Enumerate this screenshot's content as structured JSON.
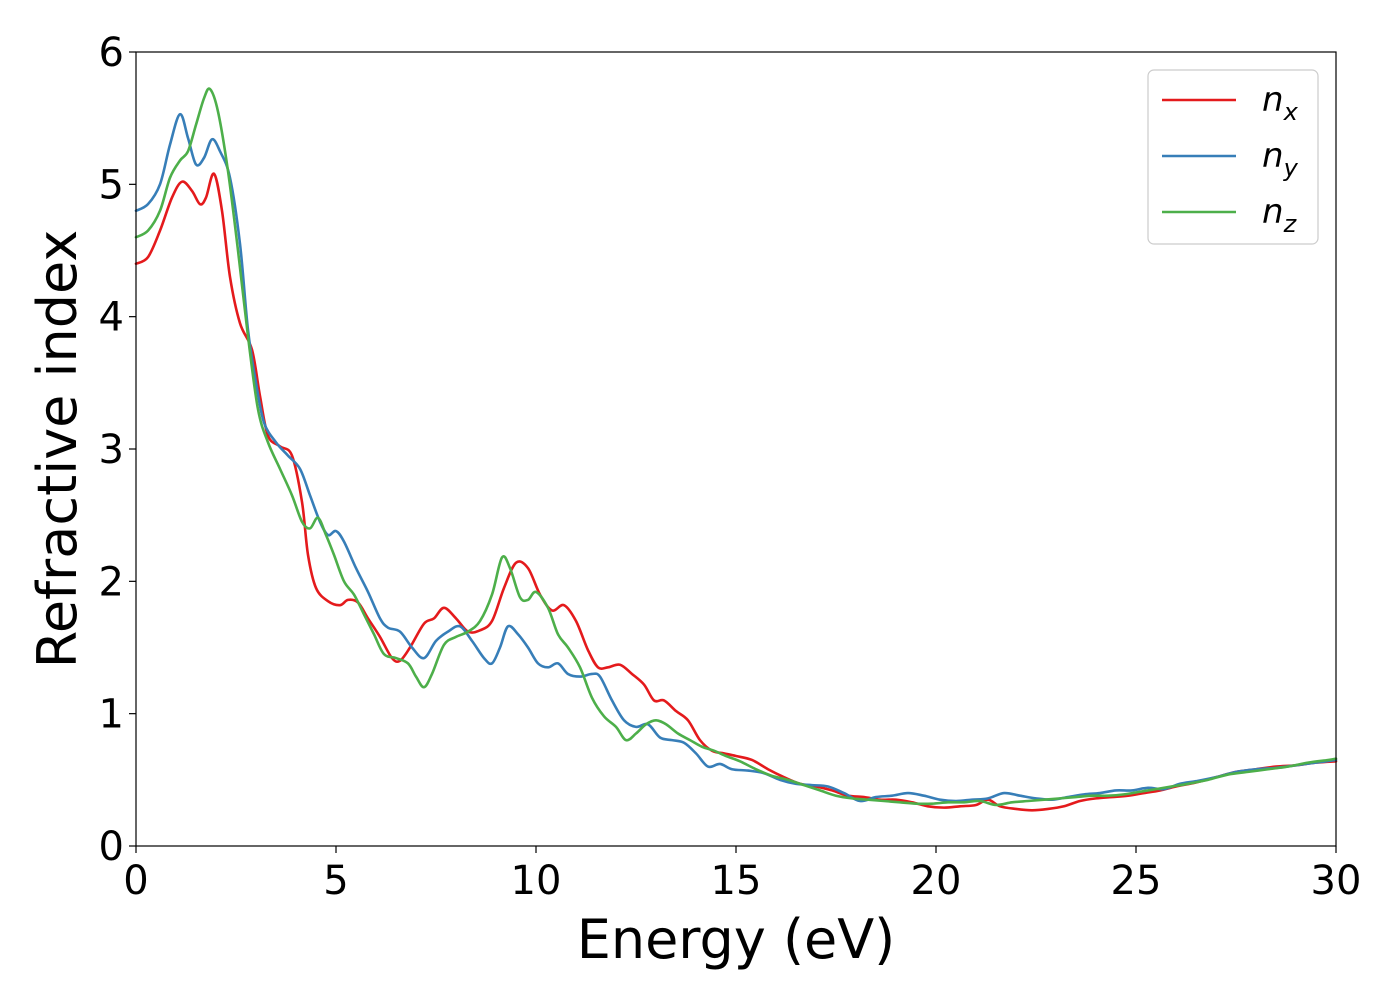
{
  "chart_data": {
    "type": "line",
    "xlabel": "Energy (eV)",
    "ylabel": "Refractive index",
    "xlim": [
      0,
      30
    ],
    "ylim": [
      0,
      6
    ],
    "x_ticks": [
      "0",
      "5",
      "10",
      "15",
      "20",
      "25",
      "30"
    ],
    "y_ticks": [
      "0",
      "1",
      "2",
      "3",
      "4",
      "5",
      "6"
    ],
    "grid": false,
    "legend_position": "top-right",
    "series": [
      {
        "name": "n",
        "subscript": "x",
        "color": "#e41a1c",
        "points": [
          [
            0,
            4.4
          ],
          [
            0.3,
            4.45
          ],
          [
            0.6,
            4.65
          ],
          [
            0.9,
            4.9
          ],
          [
            1.15,
            5.02
          ],
          [
            1.4,
            4.95
          ],
          [
            1.6,
            4.85
          ],
          [
            1.75,
            4.9
          ],
          [
            1.95,
            5.08
          ],
          [
            2.15,
            4.8
          ],
          [
            2.35,
            4.3
          ],
          [
            2.6,
            3.95
          ],
          [
            2.9,
            3.75
          ],
          [
            3.1,
            3.4
          ],
          [
            3.3,
            3.1
          ],
          [
            3.6,
            3.02
          ],
          [
            3.9,
            2.95
          ],
          [
            4.15,
            2.6
          ],
          [
            4.3,
            2.2
          ],
          [
            4.5,
            1.95
          ],
          [
            4.8,
            1.85
          ],
          [
            5.1,
            1.82
          ],
          [
            5.3,
            1.86
          ],
          [
            5.55,
            1.84
          ],
          [
            5.8,
            1.72
          ],
          [
            6.1,
            1.58
          ],
          [
            6.4,
            1.42
          ],
          [
            6.6,
            1.4
          ],
          [
            6.85,
            1.5
          ],
          [
            7.2,
            1.68
          ],
          [
            7.45,
            1.72
          ],
          [
            7.7,
            1.8
          ],
          [
            8.0,
            1.72
          ],
          [
            8.3,
            1.62
          ],
          [
            8.6,
            1.63
          ],
          [
            8.9,
            1.7
          ],
          [
            9.2,
            1.95
          ],
          [
            9.5,
            2.14
          ],
          [
            9.8,
            2.1
          ],
          [
            10.1,
            1.9
          ],
          [
            10.4,
            1.78
          ],
          [
            10.7,
            1.82
          ],
          [
            11.0,
            1.7
          ],
          [
            11.3,
            1.48
          ],
          [
            11.55,
            1.35
          ],
          [
            11.8,
            1.35
          ],
          [
            12.1,
            1.37
          ],
          [
            12.4,
            1.3
          ],
          [
            12.7,
            1.22
          ],
          [
            12.95,
            1.1
          ],
          [
            13.2,
            1.1
          ],
          [
            13.5,
            1.02
          ],
          [
            13.8,
            0.95
          ],
          [
            14.1,
            0.8
          ],
          [
            14.4,
            0.72
          ],
          [
            14.7,
            0.7
          ],
          [
            15.0,
            0.68
          ],
          [
            15.4,
            0.65
          ],
          [
            15.8,
            0.58
          ],
          [
            16.2,
            0.52
          ],
          [
            16.6,
            0.47
          ],
          [
            17.0,
            0.45
          ],
          [
            17.4,
            0.42
          ],
          [
            17.8,
            0.38
          ],
          [
            18.2,
            0.37
          ],
          [
            18.6,
            0.35
          ],
          [
            19.0,
            0.35
          ],
          [
            19.4,
            0.33
          ],
          [
            19.8,
            0.3
          ],
          [
            20.2,
            0.29
          ],
          [
            20.6,
            0.3
          ],
          [
            21.0,
            0.31
          ],
          [
            21.3,
            0.35
          ],
          [
            21.6,
            0.3
          ],
          [
            22.0,
            0.28
          ],
          [
            22.4,
            0.27
          ],
          [
            22.8,
            0.28
          ],
          [
            23.2,
            0.3
          ],
          [
            23.6,
            0.34
          ],
          [
            24.0,
            0.36
          ],
          [
            24.4,
            0.37
          ],
          [
            24.8,
            0.38
          ],
          [
            25.2,
            0.4
          ],
          [
            25.6,
            0.42
          ],
          [
            26.0,
            0.45
          ],
          [
            26.5,
            0.48
          ],
          [
            27.0,
            0.52
          ],
          [
            27.5,
            0.56
          ],
          [
            28.0,
            0.58
          ],
          [
            28.5,
            0.6
          ],
          [
            29.0,
            0.61
          ],
          [
            29.5,
            0.63
          ],
          [
            30.0,
            0.64
          ]
        ]
      },
      {
        "name": "n",
        "subscript": "y",
        "color": "#377eb8",
        "points": [
          [
            0,
            4.8
          ],
          [
            0.3,
            4.85
          ],
          [
            0.6,
            5.0
          ],
          [
            0.85,
            5.3
          ],
          [
            1.1,
            5.53
          ],
          [
            1.3,
            5.35
          ],
          [
            1.5,
            5.15
          ],
          [
            1.7,
            5.2
          ],
          [
            1.9,
            5.34
          ],
          [
            2.1,
            5.25
          ],
          [
            2.35,
            5.05
          ],
          [
            2.6,
            4.55
          ],
          [
            2.8,
            3.9
          ],
          [
            3.0,
            3.5
          ],
          [
            3.2,
            3.2
          ],
          [
            3.5,
            3.05
          ],
          [
            3.8,
            2.95
          ],
          [
            4.1,
            2.85
          ],
          [
            4.35,
            2.65
          ],
          [
            4.6,
            2.45
          ],
          [
            4.8,
            2.35
          ],
          [
            5.0,
            2.38
          ],
          [
            5.2,
            2.3
          ],
          [
            5.5,
            2.1
          ],
          [
            5.8,
            1.92
          ],
          [
            6.1,
            1.72
          ],
          [
            6.3,
            1.65
          ],
          [
            6.6,
            1.62
          ],
          [
            6.9,
            1.5
          ],
          [
            7.2,
            1.42
          ],
          [
            7.5,
            1.55
          ],
          [
            7.8,
            1.62
          ],
          [
            8.1,
            1.66
          ],
          [
            8.4,
            1.55
          ],
          [
            8.7,
            1.42
          ],
          [
            8.9,
            1.38
          ],
          [
            9.1,
            1.5
          ],
          [
            9.3,
            1.66
          ],
          [
            9.55,
            1.6
          ],
          [
            9.8,
            1.5
          ],
          [
            10.05,
            1.38
          ],
          [
            10.3,
            1.35
          ],
          [
            10.55,
            1.38
          ],
          [
            10.8,
            1.3
          ],
          [
            11.1,
            1.28
          ],
          [
            11.4,
            1.3
          ],
          [
            11.6,
            1.28
          ],
          [
            11.9,
            1.1
          ],
          [
            12.2,
            0.95
          ],
          [
            12.5,
            0.9
          ],
          [
            12.8,
            0.92
          ],
          [
            13.1,
            0.82
          ],
          [
            13.4,
            0.8
          ],
          [
            13.7,
            0.78
          ],
          [
            14.0,
            0.7
          ],
          [
            14.3,
            0.6
          ],
          [
            14.6,
            0.62
          ],
          [
            14.9,
            0.58
          ],
          [
            15.3,
            0.57
          ],
          [
            15.7,
            0.55
          ],
          [
            16.1,
            0.5
          ],
          [
            16.5,
            0.47
          ],
          [
            16.9,
            0.46
          ],
          [
            17.3,
            0.45
          ],
          [
            17.7,
            0.4
          ],
          [
            18.1,
            0.34
          ],
          [
            18.5,
            0.37
          ],
          [
            18.9,
            0.38
          ],
          [
            19.3,
            0.4
          ],
          [
            19.7,
            0.38
          ],
          [
            20.1,
            0.35
          ],
          [
            20.5,
            0.34
          ],
          [
            20.9,
            0.35
          ],
          [
            21.3,
            0.36
          ],
          [
            21.7,
            0.4
          ],
          [
            22.1,
            0.38
          ],
          [
            22.5,
            0.36
          ],
          [
            22.9,
            0.35
          ],
          [
            23.3,
            0.37
          ],
          [
            23.7,
            0.39
          ],
          [
            24.1,
            0.4
          ],
          [
            24.5,
            0.42
          ],
          [
            24.9,
            0.42
          ],
          [
            25.3,
            0.44
          ],
          [
            25.7,
            0.43
          ],
          [
            26.1,
            0.47
          ],
          [
            26.5,
            0.49
          ],
          [
            27.0,
            0.52
          ],
          [
            27.5,
            0.56
          ],
          [
            28.0,
            0.58
          ],
          [
            28.5,
            0.59
          ],
          [
            29.0,
            0.61
          ],
          [
            29.5,
            0.63
          ],
          [
            30.0,
            0.65
          ]
        ]
      },
      {
        "name": "n",
        "subscript": "z",
        "color": "#4daf4a",
        "points": [
          [
            0,
            4.6
          ],
          [
            0.3,
            4.65
          ],
          [
            0.6,
            4.8
          ],
          [
            0.85,
            5.05
          ],
          [
            1.1,
            5.18
          ],
          [
            1.3,
            5.25
          ],
          [
            1.5,
            5.45
          ],
          [
            1.7,
            5.65
          ],
          [
            1.85,
            5.72
          ],
          [
            2.05,
            5.55
          ],
          [
            2.3,
            5.1
          ],
          [
            2.55,
            4.5
          ],
          [
            2.8,
            3.85
          ],
          [
            3.05,
            3.3
          ],
          [
            3.3,
            3.05
          ],
          [
            3.6,
            2.85
          ],
          [
            3.9,
            2.65
          ],
          [
            4.15,
            2.45
          ],
          [
            4.35,
            2.4
          ],
          [
            4.55,
            2.48
          ],
          [
            4.75,
            2.35
          ],
          [
            4.95,
            2.2
          ],
          [
            5.2,
            2.0
          ],
          [
            5.45,
            1.9
          ],
          [
            5.7,
            1.75
          ],
          [
            5.95,
            1.6
          ],
          [
            6.2,
            1.45
          ],
          [
            6.5,
            1.42
          ],
          [
            6.8,
            1.38
          ],
          [
            7.0,
            1.28
          ],
          [
            7.2,
            1.2
          ],
          [
            7.4,
            1.3
          ],
          [
            7.7,
            1.52
          ],
          [
            8.0,
            1.58
          ],
          [
            8.3,
            1.62
          ],
          [
            8.6,
            1.7
          ],
          [
            8.9,
            1.9
          ],
          [
            9.15,
            2.18
          ],
          [
            9.35,
            2.1
          ],
          [
            9.6,
            1.88
          ],
          [
            9.8,
            1.86
          ],
          [
            10.0,
            1.92
          ],
          [
            10.3,
            1.8
          ],
          [
            10.55,
            1.6
          ],
          [
            10.8,
            1.5
          ],
          [
            11.1,
            1.35
          ],
          [
            11.4,
            1.12
          ],
          [
            11.7,
            0.98
          ],
          [
            12.0,
            0.9
          ],
          [
            12.25,
            0.8
          ],
          [
            12.5,
            0.85
          ],
          [
            12.75,
            0.92
          ],
          [
            13.0,
            0.95
          ],
          [
            13.25,
            0.92
          ],
          [
            13.55,
            0.85
          ],
          [
            13.85,
            0.8
          ],
          [
            14.15,
            0.75
          ],
          [
            14.45,
            0.72
          ],
          [
            14.75,
            0.68
          ],
          [
            15.1,
            0.64
          ],
          [
            15.5,
            0.58
          ],
          [
            15.9,
            0.53
          ],
          [
            16.3,
            0.5
          ],
          [
            16.7,
            0.46
          ],
          [
            17.1,
            0.42
          ],
          [
            17.5,
            0.38
          ],
          [
            17.9,
            0.36
          ],
          [
            18.3,
            0.35
          ],
          [
            18.7,
            0.34
          ],
          [
            19.1,
            0.33
          ],
          [
            19.5,
            0.32
          ],
          [
            19.9,
            0.32
          ],
          [
            20.3,
            0.33
          ],
          [
            20.7,
            0.33
          ],
          [
            21.1,
            0.34
          ],
          [
            21.5,
            0.31
          ],
          [
            21.9,
            0.33
          ],
          [
            22.3,
            0.34
          ],
          [
            22.7,
            0.35
          ],
          [
            23.1,
            0.36
          ],
          [
            23.5,
            0.37
          ],
          [
            23.9,
            0.38
          ],
          [
            24.3,
            0.38
          ],
          [
            24.7,
            0.39
          ],
          [
            25.1,
            0.41
          ],
          [
            25.5,
            0.43
          ],
          [
            25.9,
            0.45
          ],
          [
            26.3,
            0.47
          ],
          [
            26.8,
            0.5
          ],
          [
            27.3,
            0.54
          ],
          [
            27.8,
            0.56
          ],
          [
            28.3,
            0.58
          ],
          [
            28.8,
            0.6
          ],
          [
            29.3,
            0.63
          ],
          [
            29.8,
            0.65
          ],
          [
            30.0,
            0.66
          ]
        ]
      }
    ]
  }
}
